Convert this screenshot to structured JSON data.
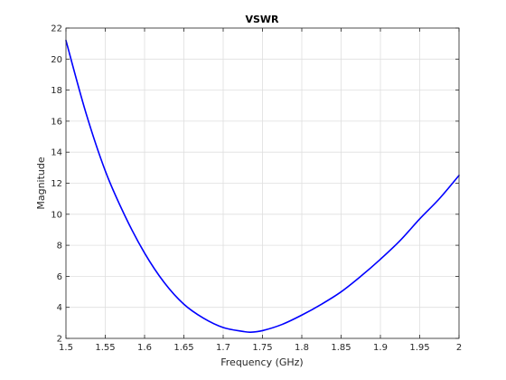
{
  "chart_data": {
    "type": "line",
    "title": "VSWR",
    "xlabel": "Frequency (GHz)",
    "ylabel": "Magnitude",
    "xlim": [
      1.5,
      2.0
    ],
    "ylim": [
      2,
      22
    ],
    "xticks": [
      1.5,
      1.55,
      1.6,
      1.65,
      1.7,
      1.75,
      1.8,
      1.85,
      1.9,
      1.95,
      2.0
    ],
    "xtick_labels": [
      "1.5",
      "1.55",
      "1.6",
      "1.65",
      "1.7",
      "1.75",
      "1.8",
      "1.85",
      "1.9",
      "1.95",
      "2"
    ],
    "yticks": [
      2,
      4,
      6,
      8,
      10,
      12,
      14,
      16,
      18,
      20,
      22
    ],
    "ytick_labels": [
      "2",
      "4",
      "6",
      "8",
      "10",
      "12",
      "14",
      "16",
      "18",
      "20",
      "22"
    ],
    "grid": true,
    "series": [
      {
        "color": "#0000ff",
        "x": [
          1.5,
          1.525,
          1.55,
          1.575,
          1.6,
          1.625,
          1.65,
          1.675,
          1.7,
          1.725,
          1.735,
          1.75,
          1.775,
          1.8,
          1.825,
          1.85,
          1.875,
          1.9,
          1.925,
          1.95,
          1.975,
          2.0
        ],
        "y": [
          21.2,
          16.6,
          12.8,
          9.9,
          7.5,
          5.6,
          4.2,
          3.3,
          2.7,
          2.45,
          2.4,
          2.5,
          2.9,
          3.5,
          4.2,
          5.0,
          6.0,
          7.1,
          8.3,
          9.7,
          11.0,
          12.5
        ]
      }
    ]
  }
}
